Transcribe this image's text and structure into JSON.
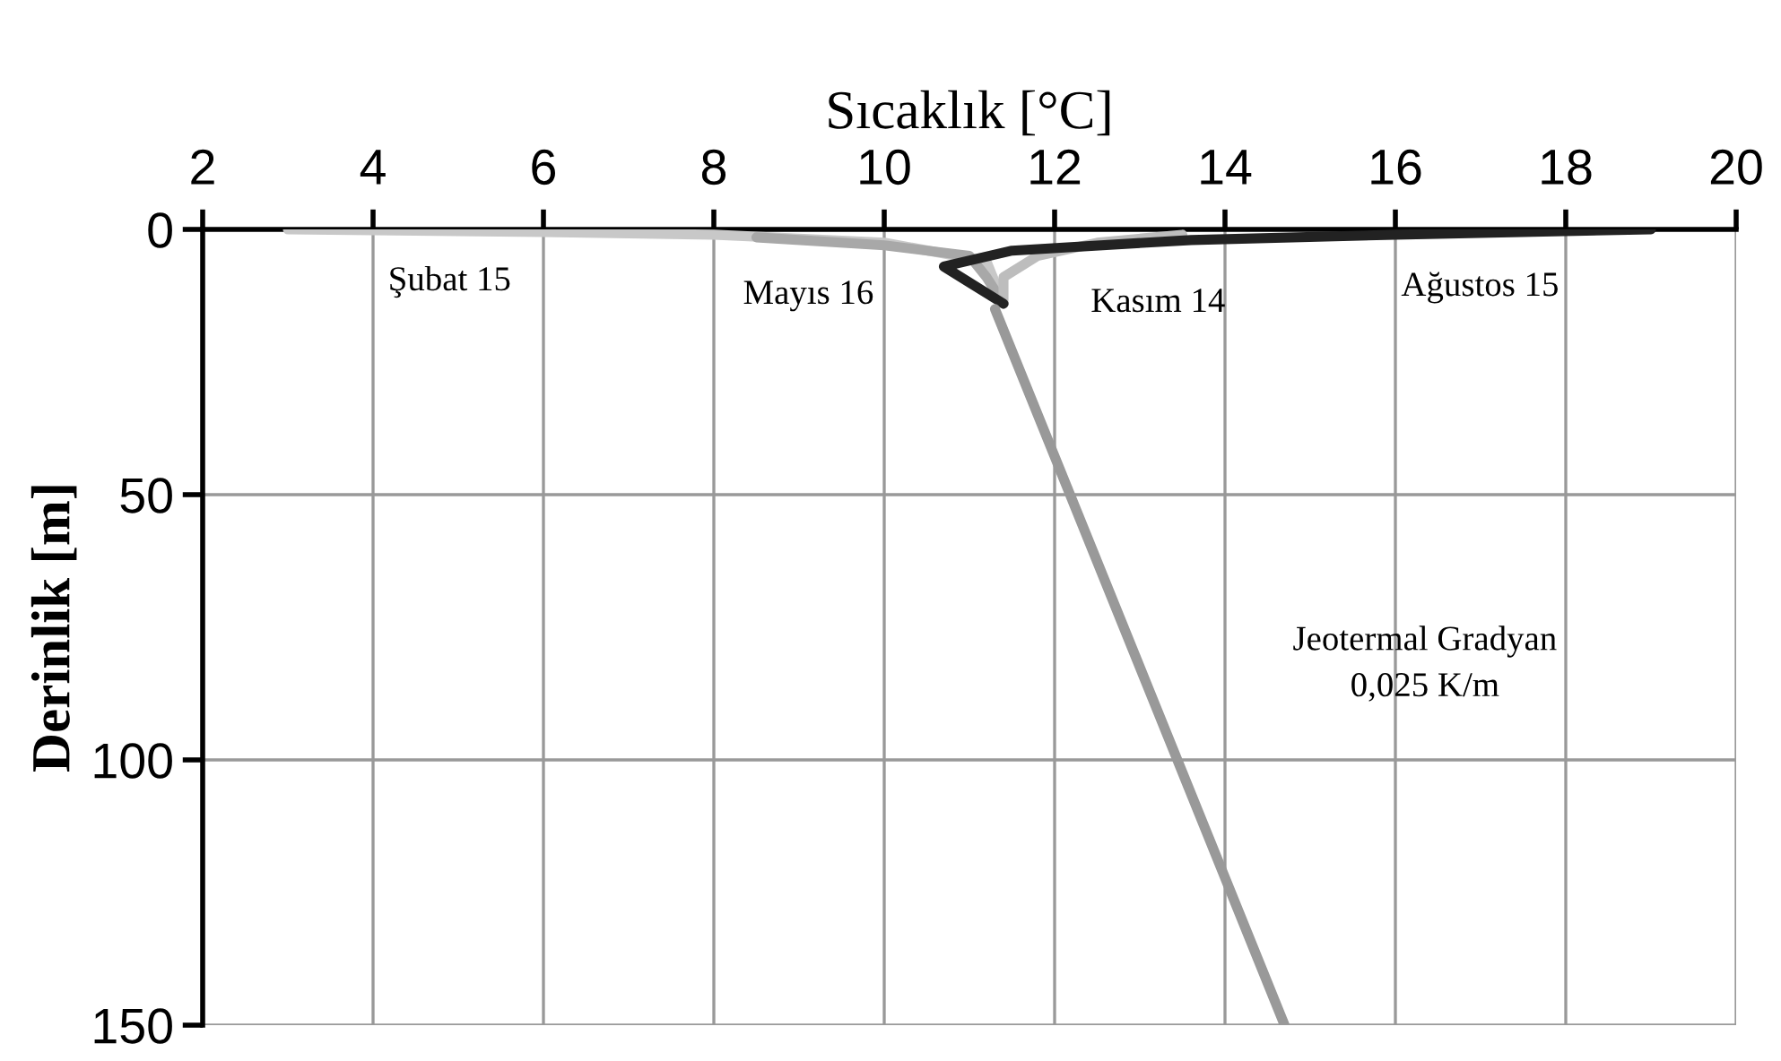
{
  "chart_data": {
    "type": "line",
    "xlabel": "Sıcaklık [°C]",
    "ylabel": "Derinlik [m]",
    "xlim": [
      2,
      20
    ],
    "xticks": [
      2,
      4,
      6,
      8,
      10,
      12,
      14,
      16,
      18,
      20
    ],
    "ylim": [
      150,
      0
    ],
    "yticks": [
      0,
      50,
      100,
      150
    ],
    "grid": true,
    "line_style": "solid",
    "marker": "none",
    "series": [
      {
        "color": "#c8c8c8",
        "x": [
          3,
          6,
          8,
          10,
          11.2,
          11.4
        ],
        "values": [
          0,
          0.5,
          1,
          2.5,
          6,
          14
        ]
      },
      {
        "color": "#a8a8a8",
        "x": [
          8.5,
          10,
          11,
          11.2,
          11.4
        ],
        "values": [
          1.5,
          3,
          5,
          9,
          14
        ]
      },
      {
        "color": "#bdbdbd",
        "x": [
          13.5,
          12.5,
          11.8,
          11.4,
          11.4
        ],
        "values": [
          1,
          2.5,
          5,
          9,
          14
        ]
      },
      {
        "color": "#222222",
        "x": [
          19,
          16,
          13.6,
          11.5,
          10.7,
          11.0,
          11.4
        ],
        "values": [
          0,
          1,
          2,
          4,
          7,
          10,
          14
        ]
      },
      {
        "color": "#999999",
        "x": [
          11.3,
          14.7
        ],
        "values": [
          15,
          150
        ]
      }
    ],
    "annotations": [
      "Şubat 15",
      "Mayıs 16",
      "Kasım 14",
      "Ağustos 15",
      "Jeotermal Gradyan\n0,025 K/m"
    ]
  }
}
